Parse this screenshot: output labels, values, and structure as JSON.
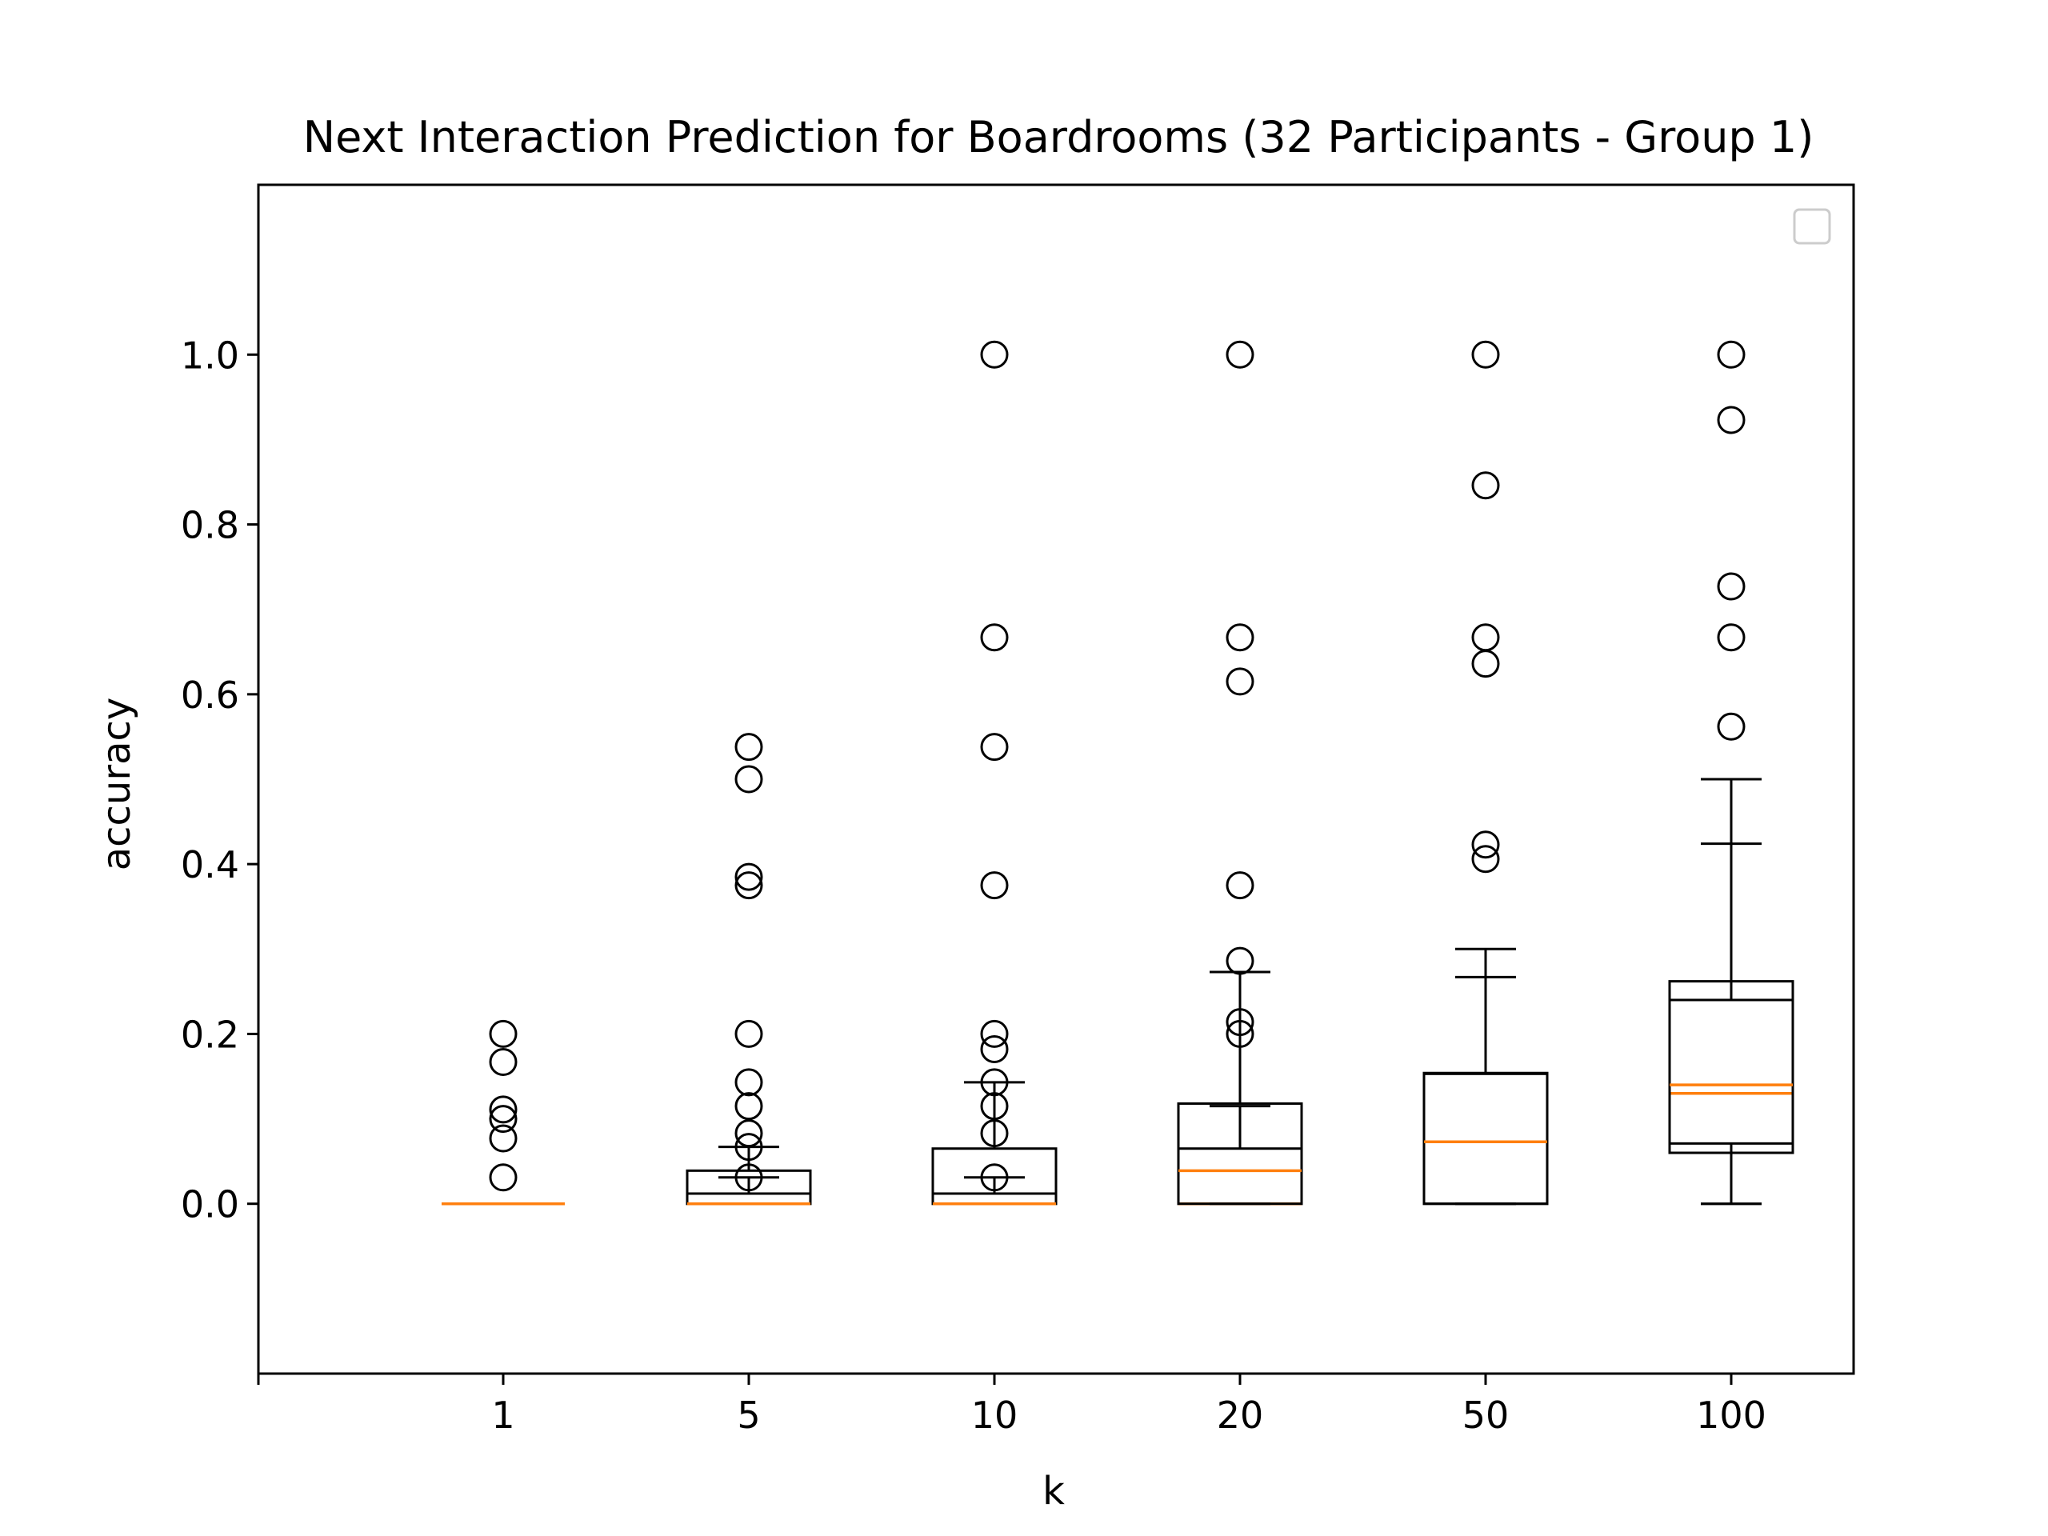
{
  "chart_data": {
    "type": "box",
    "title": "Next Interaction Prediction for Boardrooms (32 Participants - Group 1)",
    "xlabel": "k",
    "ylabel": "accuracy",
    "categories": [
      "1",
      "5",
      "10",
      "20",
      "50",
      "100"
    ],
    "ylim": [
      -0.2,
      1.2
    ],
    "yticks": [
      "0.0",
      "0.2",
      "0.4",
      "0.6",
      "0.8",
      "1.0"
    ],
    "yticks_values": [
      0.0,
      0.2,
      0.4,
      0.6,
      0.8,
      1.0
    ],
    "legend_placement": "top-right",
    "grid": false,
    "colors": {
      "median": "#ff7f0e",
      "box": "#000000",
      "background": "#ffffff"
    },
    "overlay_groups": [
      {
        "name": "",
        "boxes": [
          {
            "category": "1",
            "q1": 0.0,
            "median": 0.0,
            "q3": 0.0,
            "whisker_low": 0.0,
            "whisker_high": 0.0,
            "outliers": [
              0.2,
              0.167,
              0.111,
              0.1,
              0.077,
              0.031
            ]
          },
          {
            "category": "5",
            "q1": 0.0,
            "median": 0.0,
            "q3": 0.012,
            "whisker_low": 0.0,
            "whisker_high": 0.031,
            "outliers": [
              0.538,
              0.5,
              0.385,
              0.375,
              0.2,
              0.143,
              0.115,
              0.083,
              0.067,
              0.031
            ]
          },
          {
            "category": "10",
            "q1": 0.0,
            "median": 0.0,
            "q3": 0.012,
            "whisker_low": 0.0,
            "whisker_high": 0.031,
            "outliers": [
              1.0,
              0.667,
              0.538,
              0.375,
              0.2,
              0.182,
              0.143,
              0.115,
              0.083,
              0.031
            ]
          },
          {
            "category": "20",
            "q1": 0.0,
            "median": 0.0,
            "q3": 0.065,
            "whisker_low": 0.0,
            "whisker_high": 0.115,
            "outliers": [
              1.0,
              0.667,
              0.615,
              0.375,
              0.286,
              0.214,
              0.2
            ]
          },
          {
            "category": "50",
            "q1": 0.0,
            "median": 0.073,
            "q3": 0.153,
            "whisker_low": 0.0,
            "whisker_high": 0.267,
            "outliers": [
              1.0,
              0.846,
              0.667,
              0.636,
              0.423,
              0.406
            ]
          },
          {
            "category": "100",
            "q1": 0.071,
            "median": 0.13,
            "q3": 0.24,
            "whisker_low": 0.0,
            "whisker_high": 0.424,
            "outliers": [
              1.0,
              0.923,
              0.727,
              0.667,
              0.562
            ]
          }
        ]
      },
      {
        "name": "",
        "boxes": [
          {
            "category": "1",
            "q1": 0.0,
            "median": 0.0,
            "q3": 0.0,
            "whisker_low": 0.0,
            "whisker_high": 0.0,
            "outliers": []
          },
          {
            "category": "5",
            "q1": 0.0,
            "median": 0.0,
            "q3": 0.039,
            "whisker_low": 0.0,
            "whisker_high": 0.067,
            "outliers": []
          },
          {
            "category": "10",
            "q1": 0.0,
            "median": 0.0,
            "q3": 0.065,
            "whisker_low": 0.0,
            "whisker_high": 0.143,
            "outliers": []
          },
          {
            "category": "20",
            "q1": 0.0,
            "median": 0.039,
            "q3": 0.118,
            "whisker_low": 0.0,
            "whisker_high": 0.273,
            "outliers": []
          },
          {
            "category": "50",
            "q1": 0.0,
            "median": 0.073,
            "q3": 0.154,
            "whisker_low": 0.0,
            "whisker_high": 0.3,
            "outliers": []
          },
          {
            "category": "100",
            "q1": 0.06,
            "median": 0.14,
            "q3": 0.262,
            "whisker_low": 0.0,
            "whisker_high": 0.5,
            "outliers": []
          }
        ]
      }
    ]
  }
}
